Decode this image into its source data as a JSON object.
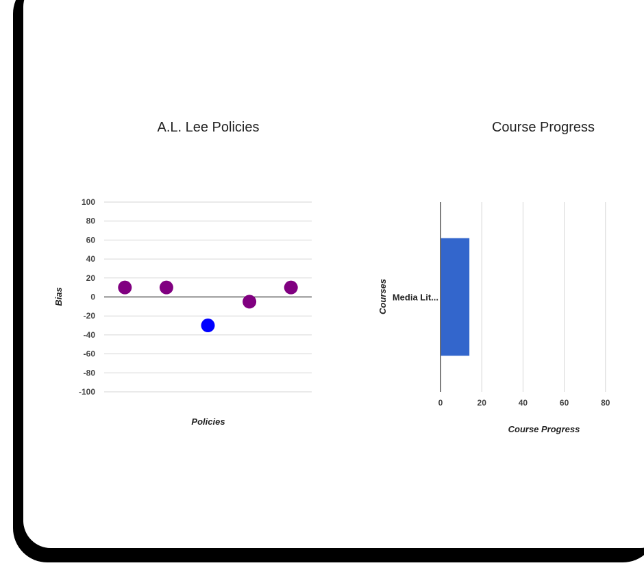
{
  "chart_data": [
    {
      "type": "scatter",
      "title": "A.L. Lee Policies",
      "xlabel": "Policies",
      "ylabel": "Bias",
      "ylim": [
        -100,
        100
      ],
      "yticks": [
        100,
        80,
        60,
        40,
        20,
        0,
        -20,
        -40,
        -60,
        -80,
        -100
      ],
      "grid": true,
      "x": [
        1,
        2,
        3,
        4,
        5
      ],
      "series": [
        {
          "name": "Policies",
          "values": [
            10,
            10,
            -30,
            -5,
            10
          ],
          "colors": [
            "#800080",
            "#800080",
            "#0000ff",
            "#800080",
            "#800080"
          ]
        }
      ]
    },
    {
      "type": "bar",
      "orientation": "horizontal",
      "title": "Course Progress",
      "xlabel": "Course Progress",
      "ylabel": "Courses",
      "xlim": [
        0,
        80
      ],
      "xticks": [
        0,
        20,
        40,
        60,
        80
      ],
      "grid": true,
      "categories": [
        "Media Lit..."
      ],
      "values": [
        14
      ],
      "color": "#3366cc"
    }
  ]
}
